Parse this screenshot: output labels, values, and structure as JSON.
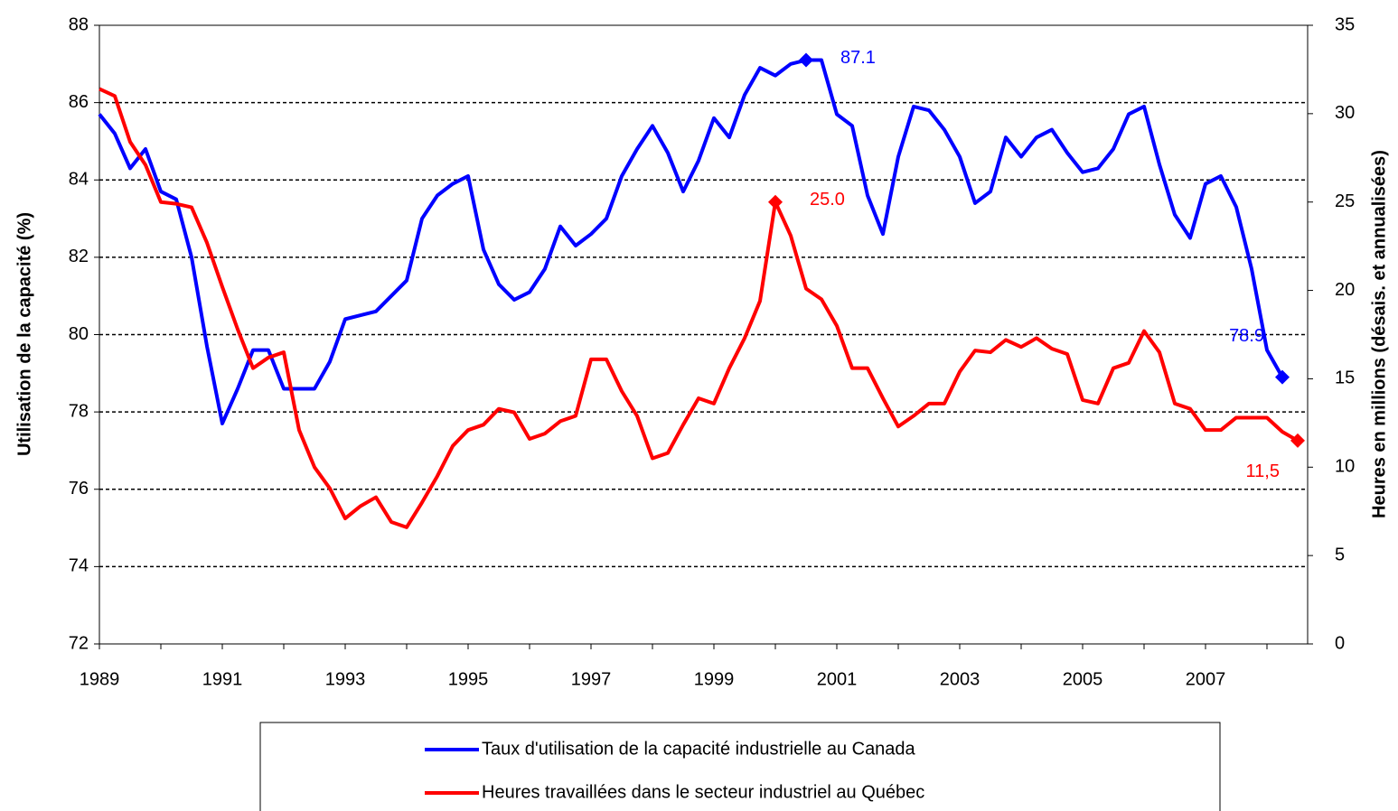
{
  "chart_data": {
    "type": "line",
    "categories": [
      "1989",
      null,
      null,
      null,
      null,
      null,
      null,
      null,
      "1991",
      null,
      null,
      null,
      null,
      null,
      null,
      null,
      "1993",
      null,
      null,
      null,
      null,
      null,
      null,
      null,
      "1995",
      null,
      null,
      null,
      null,
      null,
      null,
      null,
      "1997",
      null,
      null,
      null,
      null,
      null,
      null,
      null,
      "1999",
      null,
      null,
      null,
      null,
      null,
      null,
      null,
      "2001",
      null,
      null,
      null,
      null,
      null,
      null,
      null,
      "2003",
      null,
      null,
      null,
      null,
      null,
      null,
      null,
      "2005",
      null,
      null,
      null,
      null,
      null,
      null,
      null,
      "2007",
      null,
      null,
      null,
      null,
      null,
      null
    ],
    "y_label": "Utilisation de la capacité (%)",
    "y2_label": "Heures en millions (désais. et annualisées)",
    "ylim": [
      72,
      88
    ],
    "yticks": [
      72,
      74,
      76,
      78,
      80,
      82,
      84,
      86,
      88
    ],
    "y2lim": [
      0,
      35
    ],
    "y2ticks": [
      0,
      5,
      10,
      15,
      20,
      25,
      30,
      35
    ],
    "grid": true,
    "series": [
      {
        "name": "Taux d'utilisation de la capacité industrielle au Canada",
        "color": "#0000ff",
        "values": [
          85.7,
          85.2,
          84.3,
          84.8,
          83.7,
          83.5,
          82.0,
          79.7,
          77.7,
          78.6,
          79.6,
          79.6,
          78.6,
          78.6,
          78.6,
          79.3,
          80.4,
          80.5,
          80.6,
          81.0,
          81.4,
          83.0,
          83.6,
          83.9,
          84.1,
          82.2,
          81.3,
          80.9,
          81.1,
          81.7,
          82.8,
          82.3,
          82.6,
          83.0,
          84.1,
          84.8,
          85.4,
          84.7,
          83.7,
          84.5,
          85.6,
          85.1,
          86.2,
          86.9,
          86.7,
          87.0,
          87.1,
          87.1,
          85.7,
          85.4,
          83.6,
          82.6,
          84.6,
          85.9,
          85.8,
          85.3,
          84.6,
          83.4,
          83.7,
          85.1,
          84.6,
          85.1,
          85.3,
          84.7,
          84.2,
          84.3,
          84.8,
          85.7,
          85.9,
          84.4,
          83.1,
          82.5,
          83.9,
          84.1,
          83.3,
          81.7,
          79.6,
          78.9,
          null
        ],
        "value_labels": [
          null,
          null,
          null,
          null,
          null,
          null,
          null,
          null,
          null,
          null,
          null,
          null,
          null,
          null,
          null,
          null,
          null,
          null,
          null,
          null,
          null,
          null,
          null,
          null,
          null,
          null,
          null,
          null,
          null,
          null,
          null,
          null,
          null,
          null,
          null,
          null,
          null,
          null,
          null,
          null,
          null,
          null,
          null,
          null,
          null,
          null,
          "87.1",
          null,
          null,
          null,
          null,
          null,
          null,
          null,
          null,
          null,
          null,
          null,
          null,
          null,
          null,
          null,
          null,
          null,
          null,
          null,
          null,
          null,
          null,
          null,
          null,
          null,
          null,
          null,
          null,
          null,
          null,
          "78.9",
          null
        ]
      },
      {
        "name": "Heures travaillées dans le secteur industriel au Québec",
        "color": "#ff0000",
        "axis": "y2",
        "values": [
          31.4,
          31.0,
          28.4,
          27.1,
          25.0,
          24.9,
          24.7,
          22.7,
          20.2,
          17.8,
          15.6,
          16.2,
          16.5,
          12.1,
          10.0,
          8.8,
          7.1,
          7.8,
          8.3,
          6.9,
          6.6,
          8.0,
          9.5,
          11.2,
          12.1,
          12.4,
          13.3,
          13.1,
          11.6,
          11.9,
          12.6,
          12.9,
          16.1,
          16.1,
          14.3,
          12.9,
          10.5,
          10.8,
          12.4,
          13.9,
          13.6,
          15.6,
          17.3,
          19.4,
          25.0,
          23.1,
          20.1,
          19.5,
          18.0,
          15.6,
          15.6,
          13.9,
          12.3,
          12.9,
          13.6,
          13.6,
          15.4,
          16.6,
          16.5,
          17.2,
          16.8,
          17.3,
          16.7,
          16.4,
          13.8,
          13.6,
          15.6,
          15.9,
          17.7,
          16.5,
          13.6,
          13.3,
          12.1,
          12.1,
          12.8,
          12.8,
          12.8,
          12.0,
          11.5
        ],
        "value_labels": [
          null,
          null,
          null,
          null,
          null,
          null,
          null,
          null,
          null,
          null,
          null,
          null,
          null,
          null,
          null,
          null,
          null,
          null,
          null,
          null,
          null,
          null,
          null,
          null,
          null,
          null,
          null,
          null,
          null,
          null,
          null,
          null,
          null,
          null,
          null,
          null,
          null,
          null,
          null,
          null,
          null,
          null,
          null,
          null,
          "25.0",
          null,
          null,
          null,
          null,
          null,
          null,
          null,
          null,
          null,
          null,
          null,
          null,
          null,
          null,
          null,
          null,
          null,
          null,
          null,
          null,
          null,
          null,
          null,
          null,
          null,
          null,
          null,
          null,
          null,
          null,
          null,
          null,
          null,
          "11,5"
        ]
      }
    ]
  }
}
